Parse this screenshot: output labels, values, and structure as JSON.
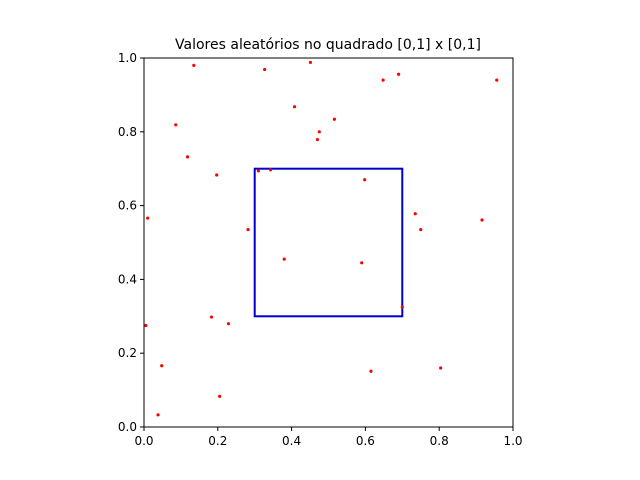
{
  "chart_data": {
    "type": "scatter",
    "title": "Valores aleatórios no quadrado [0,1] x [0,1]",
    "xlabel": "",
    "ylabel": "",
    "xlim": [
      0.0,
      1.0
    ],
    "ylim": [
      0.0,
      1.0
    ],
    "grid": false,
    "x_ticks": [
      "0.0",
      "0.2",
      "0.4",
      "0.6",
      "0.8",
      "1.0"
    ],
    "y_ticks": [
      "0.0",
      "0.2",
      "0.4",
      "0.6",
      "0.8",
      "1.0"
    ],
    "points_color": "#ff0000",
    "points": [
      {
        "x": 0.135,
        "y": 0.98
      },
      {
        "x": 0.327,
        "y": 0.969
      },
      {
        "x": 0.451,
        "y": 0.988
      },
      {
        "x": 0.648,
        "y": 0.94
      },
      {
        "x": 0.69,
        "y": 0.956
      },
      {
        "x": 0.956,
        "y": 0.94
      },
      {
        "x": 0.408,
        "y": 0.868
      },
      {
        "x": 0.516,
        "y": 0.834
      },
      {
        "x": 0.475,
        "y": 0.8
      },
      {
        "x": 0.47,
        "y": 0.779
      },
      {
        "x": 0.086,
        "y": 0.819
      },
      {
        "x": 0.118,
        "y": 0.732
      },
      {
        "x": 0.197,
        "y": 0.683
      },
      {
        "x": 0.31,
        "y": 0.694
      },
      {
        "x": 0.343,
        "y": 0.697
      },
      {
        "x": 0.598,
        "y": 0.67
      },
      {
        "x": 0.735,
        "y": 0.578
      },
      {
        "x": 0.75,
        "y": 0.535
      },
      {
        "x": 0.916,
        "y": 0.561
      },
      {
        "x": 0.01,
        "y": 0.566
      },
      {
        "x": 0.282,
        "y": 0.535
      },
      {
        "x": 0.38,
        "y": 0.455
      },
      {
        "x": 0.59,
        "y": 0.445
      },
      {
        "x": 0.7,
        "y": 0.325
      },
      {
        "x": 0.183,
        "y": 0.298
      },
      {
        "x": 0.229,
        "y": 0.28
      },
      {
        "x": 0.005,
        "y": 0.275
      },
      {
        "x": 0.048,
        "y": 0.166
      },
      {
        "x": 0.615,
        "y": 0.151
      },
      {
        "x": 0.804,
        "y": 0.16
      },
      {
        "x": 0.205,
        "y": 0.083
      },
      {
        "x": 0.038,
        "y": 0.033
      }
    ],
    "square": {
      "x0": 0.3,
      "y0": 0.3,
      "x1": 0.7,
      "y1": 0.7,
      "color": "#0000cc"
    }
  }
}
